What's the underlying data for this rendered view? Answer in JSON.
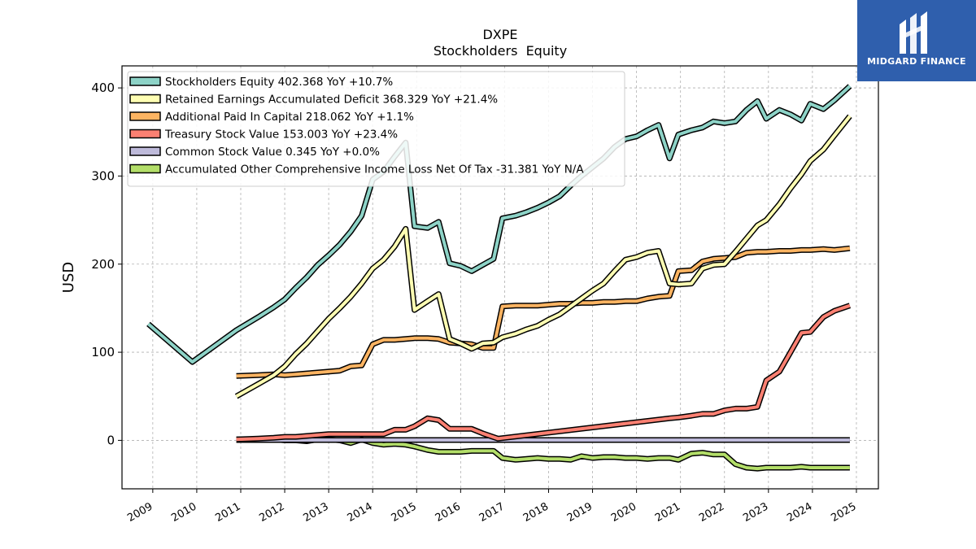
{
  "brand": {
    "name": "MIDGARD FINANCE",
    "logo_icon": "midgard-m-logo-icon",
    "color": "#2f5fad"
  },
  "chart_data": {
    "type": "line",
    "title": "DXPE",
    "subtitle": "Stockholders  Equity",
    "xlabel": "",
    "ylabel": "USD",
    "xlim": [
      2008.3,
      2025.5
    ],
    "ylim": [
      -55,
      425
    ],
    "xticks": [
      "2009",
      "2010",
      "2011",
      "2012",
      "2013",
      "2014",
      "2015",
      "2016",
      "2017",
      "2018",
      "2019",
      "2020",
      "2021",
      "2022",
      "2023",
      "2024",
      "2025"
    ],
    "yticks": [
      0,
      100,
      200,
      300,
      400
    ],
    "grid": true,
    "legend_position": "top-left",
    "series": [
      {
        "name": "Stockholders Equity",
        "legend": "Stockholders Equity  402.368 YoY +10.7%",
        "color": "#8dd3c7",
        "points": [
          [
            2008.9,
            132
          ],
          [
            2009.9,
            89
          ],
          [
            2010.9,
            125
          ],
          [
            2011.4,
            140
          ],
          [
            2011.75,
            151
          ],
          [
            2012.0,
            160
          ],
          [
            2012.25,
            173
          ],
          [
            2012.5,
            185
          ],
          [
            2012.75,
            199
          ],
          [
            2013.0,
            210
          ],
          [
            2013.25,
            222
          ],
          [
            2013.5,
            237
          ],
          [
            2013.75,
            255
          ],
          [
            2014.0,
            296
          ],
          [
            2014.25,
            305
          ],
          [
            2014.5,
            322
          ],
          [
            2014.75,
            338
          ],
          [
            2014.95,
            243
          ],
          [
            2015.25,
            241
          ],
          [
            2015.5,
            248
          ],
          [
            2015.75,
            201
          ],
          [
            2016.0,
            198
          ],
          [
            2016.25,
            192
          ],
          [
            2016.5,
            199
          ],
          [
            2016.75,
            206
          ],
          [
            2016.95,
            252
          ],
          [
            2017.25,
            255
          ],
          [
            2017.5,
            259
          ],
          [
            2017.75,
            264
          ],
          [
            2018.0,
            270
          ],
          [
            2018.25,
            277
          ],
          [
            2018.5,
            289
          ],
          [
            2018.75,
            300
          ],
          [
            2019.0,
            310
          ],
          [
            2019.25,
            320
          ],
          [
            2019.5,
            333
          ],
          [
            2019.75,
            342
          ],
          [
            2020.0,
            345
          ],
          [
            2020.25,
            352
          ],
          [
            2020.5,
            358
          ],
          [
            2020.75,
            320
          ],
          [
            2020.95,
            347
          ],
          [
            2021.25,
            352
          ],
          [
            2021.5,
            355
          ],
          [
            2021.75,
            362
          ],
          [
            2022.0,
            360
          ],
          [
            2022.25,
            362
          ],
          [
            2022.5,
            375
          ],
          [
            2022.75,
            385
          ],
          [
            2022.95,
            365
          ],
          [
            2023.25,
            375
          ],
          [
            2023.5,
            370
          ],
          [
            2023.75,
            363
          ],
          [
            2023.95,
            382
          ],
          [
            2024.25,
            376
          ],
          [
            2024.5,
            386
          ],
          [
            2024.85,
            402
          ]
        ]
      },
      {
        "name": "Retained Earnings Accumulated Deficit",
        "legend": "Retained Earnings Accumulated Deficit  368.329 YoY +21.4%",
        "color": "#ffffb3",
        "points": [
          [
            2010.9,
            50
          ],
          [
            2011.4,
            64
          ],
          [
            2011.75,
            74
          ],
          [
            2012.0,
            84
          ],
          [
            2012.25,
            98
          ],
          [
            2012.5,
            110
          ],
          [
            2012.75,
            124
          ],
          [
            2013.0,
            138
          ],
          [
            2013.25,
            150
          ],
          [
            2013.5,
            163
          ],
          [
            2013.75,
            178
          ],
          [
            2014.0,
            195
          ],
          [
            2014.25,
            205
          ],
          [
            2014.5,
            220
          ],
          [
            2014.75,
            240
          ],
          [
            2014.95,
            148
          ],
          [
            2015.25,
            158
          ],
          [
            2015.5,
            166
          ],
          [
            2015.75,
            115
          ],
          [
            2016.0,
            110
          ],
          [
            2016.25,
            104
          ],
          [
            2016.5,
            110
          ],
          [
            2016.75,
            111
          ],
          [
            2016.95,
            117
          ],
          [
            2017.25,
            121
          ],
          [
            2017.5,
            126
          ],
          [
            2017.75,
            130
          ],
          [
            2018.0,
            137
          ],
          [
            2018.25,
            143
          ],
          [
            2018.5,
            152
          ],
          [
            2018.75,
            161
          ],
          [
            2019.0,
            170
          ],
          [
            2019.25,
            178
          ],
          [
            2019.5,
            192
          ],
          [
            2019.75,
            205
          ],
          [
            2020.0,
            208
          ],
          [
            2020.25,
            213
          ],
          [
            2020.5,
            215
          ],
          [
            2020.75,
            178
          ],
          [
            2020.95,
            177
          ],
          [
            2021.25,
            178
          ],
          [
            2021.5,
            195
          ],
          [
            2021.75,
            199
          ],
          [
            2022.0,
            200
          ],
          [
            2022.25,
            214
          ],
          [
            2022.5,
            229
          ],
          [
            2022.75,
            244
          ],
          [
            2022.95,
            250
          ],
          [
            2023.25,
            268
          ],
          [
            2023.5,
            286
          ],
          [
            2023.75,
            302
          ],
          [
            2023.95,
            317
          ],
          [
            2024.25,
            330
          ],
          [
            2024.5,
            346
          ],
          [
            2024.85,
            368
          ]
        ]
      },
      {
        "name": "Additional Paid In Capital",
        "legend": "Additional Paid In Capital  218.062 YoY +1.1%",
        "color": "#fdb462",
        "points": [
          [
            2010.9,
            73
          ],
          [
            2011.4,
            74
          ],
          [
            2011.75,
            75
          ],
          [
            2012.0,
            74
          ],
          [
            2012.25,
            75
          ],
          [
            2012.5,
            76
          ],
          [
            2012.75,
            77
          ],
          [
            2013.0,
            78
          ],
          [
            2013.25,
            79
          ],
          [
            2013.5,
            84
          ],
          [
            2013.75,
            85
          ],
          [
            2014.0,
            109
          ],
          [
            2014.25,
            114
          ],
          [
            2014.5,
            114
          ],
          [
            2014.75,
            115
          ],
          [
            2014.95,
            116
          ],
          [
            2015.25,
            116
          ],
          [
            2015.5,
            115
          ],
          [
            2015.75,
            111
          ],
          [
            2016.0,
            110
          ],
          [
            2016.25,
            109
          ],
          [
            2016.5,
            105
          ],
          [
            2016.75,
            105
          ],
          [
            2016.95,
            152
          ],
          [
            2017.25,
            153
          ],
          [
            2017.5,
            153
          ],
          [
            2017.75,
            153
          ],
          [
            2018.0,
            154
          ],
          [
            2018.25,
            155
          ],
          [
            2018.5,
            155
          ],
          [
            2018.75,
            156
          ],
          [
            2019.0,
            156
          ],
          [
            2019.25,
            157
          ],
          [
            2019.5,
            157
          ],
          [
            2019.75,
            158
          ],
          [
            2020.0,
            158
          ],
          [
            2020.25,
            161
          ],
          [
            2020.5,
            163
          ],
          [
            2020.75,
            164
          ],
          [
            2020.95,
            192
          ],
          [
            2021.25,
            193
          ],
          [
            2021.5,
            203
          ],
          [
            2021.75,
            206
          ],
          [
            2022.0,
            207
          ],
          [
            2022.25,
            208
          ],
          [
            2022.5,
            213
          ],
          [
            2022.75,
            214
          ],
          [
            2022.95,
            214
          ],
          [
            2023.25,
            215
          ],
          [
            2023.5,
            215
          ],
          [
            2023.75,
            216
          ],
          [
            2023.95,
            216
          ],
          [
            2024.25,
            217
          ],
          [
            2024.5,
            216
          ],
          [
            2024.85,
            218
          ]
        ]
      },
      {
        "name": "Treasury Stock Value",
        "legend": "Treasury Stock Value  153.003 YoY +23.4%",
        "color": "#fb8072",
        "points": [
          [
            2010.9,
            1
          ],
          [
            2011.4,
            2
          ],
          [
            2011.75,
            3
          ],
          [
            2012.0,
            4
          ],
          [
            2012.25,
            4
          ],
          [
            2012.5,
            5
          ],
          [
            2012.75,
            6
          ],
          [
            2013.0,
            7
          ],
          [
            2013.5,
            7
          ],
          [
            2013.75,
            7
          ],
          [
            2014.0,
            7
          ],
          [
            2014.25,
            7
          ],
          [
            2014.5,
            12
          ],
          [
            2014.75,
            12
          ],
          [
            2014.95,
            16
          ],
          [
            2015.25,
            25
          ],
          [
            2015.5,
            23
          ],
          [
            2015.75,
            13
          ],
          [
            2016.0,
            13
          ],
          [
            2016.25,
            13
          ],
          [
            2016.5,
            8
          ],
          [
            2016.85,
            2
          ],
          [
            2020.75,
            25
          ],
          [
            2020.95,
            26
          ],
          [
            2021.25,
            28
          ],
          [
            2021.5,
            30
          ],
          [
            2021.75,
            30
          ],
          [
            2022.0,
            34
          ],
          [
            2022.25,
            36
          ],
          [
            2022.5,
            36
          ],
          [
            2022.75,
            38
          ],
          [
            2022.95,
            68
          ],
          [
            2023.25,
            78
          ],
          [
            2023.5,
            100
          ],
          [
            2023.75,
            122
          ],
          [
            2023.95,
            123
          ],
          [
            2024.25,
            140
          ],
          [
            2024.5,
            147
          ],
          [
            2024.85,
            153
          ]
        ]
      },
      {
        "name": "Common Stock Value",
        "legend": "Common Stock Value  0.345 YoY +0.0%",
        "color": "#bebada",
        "points": [
          [
            2010.9,
            0.35
          ],
          [
            2024.85,
            0.35
          ]
        ]
      },
      {
        "name": "Accumulated Other Comprehensive Income Loss Net Of Tax",
        "legend": "Accumulated Other Comprehensive Income Loss Net Of Tax  -31.381 YoY N/A",
        "color": "#b3de69",
        "points": [
          [
            2010.9,
            1
          ],
          [
            2011.4,
            1
          ],
          [
            2011.75,
            1
          ],
          [
            2012.0,
            0
          ],
          [
            2012.25,
            0
          ],
          [
            2012.5,
            -1
          ],
          [
            2012.75,
            1
          ],
          [
            2013.0,
            1
          ],
          [
            2013.25,
            0
          ],
          [
            2013.5,
            -3
          ],
          [
            2013.75,
            1
          ],
          [
            2014.0,
            -3
          ],
          [
            2014.25,
            -5
          ],
          [
            2014.5,
            -4
          ],
          [
            2014.75,
            -5
          ],
          [
            2014.95,
            -7
          ],
          [
            2015.25,
            -11
          ],
          [
            2015.5,
            -13
          ],
          [
            2015.75,
            -13
          ],
          [
            2016.0,
            -13
          ],
          [
            2016.25,
            -12
          ],
          [
            2016.5,
            -12
          ],
          [
            2016.75,
            -12
          ],
          [
            2016.95,
            -20
          ],
          [
            2017.25,
            -22
          ],
          [
            2017.5,
            -21
          ],
          [
            2017.75,
            -20
          ],
          [
            2018.0,
            -21
          ],
          [
            2018.25,
            -21
          ],
          [
            2018.5,
            -22
          ],
          [
            2018.75,
            -18
          ],
          [
            2019.0,
            -20
          ],
          [
            2019.25,
            -19
          ],
          [
            2019.5,
            -19
          ],
          [
            2019.75,
            -20
          ],
          [
            2020.0,
            -20
          ],
          [
            2020.25,
            -21
          ],
          [
            2020.5,
            -20
          ],
          [
            2020.75,
            -20
          ],
          [
            2020.95,
            -22
          ],
          [
            2021.25,
            -15
          ],
          [
            2021.5,
            -14
          ],
          [
            2021.75,
            -16
          ],
          [
            2022.0,
            -16
          ],
          [
            2022.25,
            -27
          ],
          [
            2022.5,
            -31
          ],
          [
            2022.75,
            -32
          ],
          [
            2022.95,
            -31
          ],
          [
            2023.25,
            -31
          ],
          [
            2023.5,
            -31
          ],
          [
            2023.75,
            -30
          ],
          [
            2023.95,
            -31
          ],
          [
            2024.25,
            -31
          ],
          [
            2024.5,
            -31
          ],
          [
            2024.85,
            -31
          ]
        ]
      }
    ]
  }
}
